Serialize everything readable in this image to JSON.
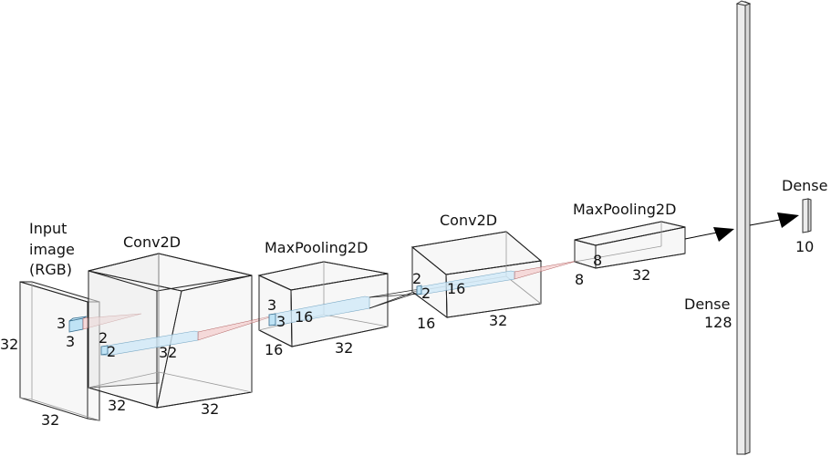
{
  "layers": {
    "input": {
      "title_line1": "Input",
      "title_line2": "image",
      "title_line3": "(RGB)",
      "height": "32",
      "width": "32",
      "kernel_h": "3",
      "kernel_w": "3"
    },
    "conv1": {
      "title": "Conv2D",
      "height": "32",
      "width": "32",
      "depth": "32",
      "kernel_h": "2",
      "kernel_w": "2"
    },
    "pool1": {
      "title": "MaxPooling2D",
      "height": "16",
      "width": "32",
      "depth": "16",
      "kernel_h": "3",
      "kernel_w": "3"
    },
    "conv2": {
      "title": "Conv2D",
      "height": "16",
      "width": "32",
      "depth": "16",
      "kernel_h": "2",
      "kernel_w": "2"
    },
    "pool2": {
      "title": "MaxPooling2D",
      "height": "8",
      "width": "32",
      "depth": "8"
    },
    "dense1": {
      "title": "Dense",
      "units": "128"
    },
    "dense2": {
      "title": "Dense",
      "units": "10"
    }
  }
}
